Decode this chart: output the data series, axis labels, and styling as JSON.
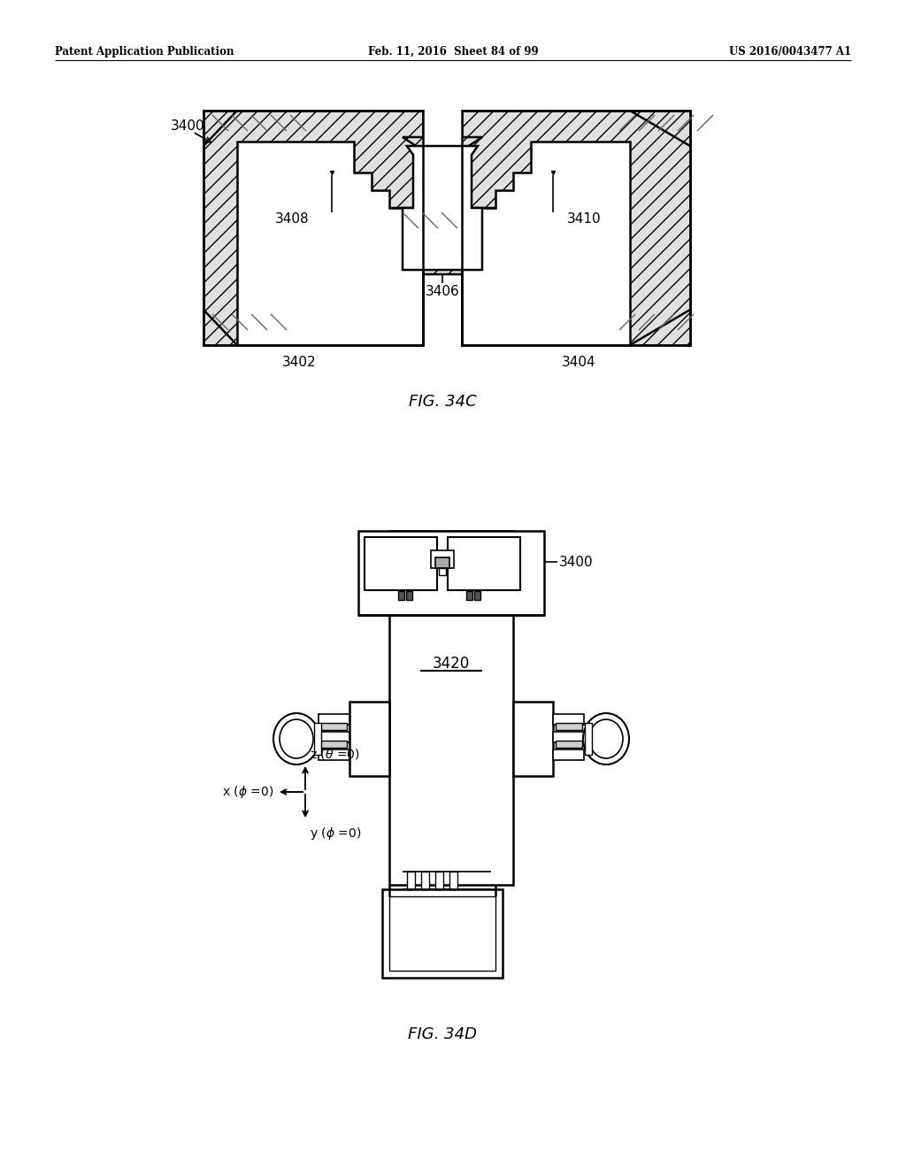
{
  "header_left": "Patent Application Publication",
  "header_mid": "Feb. 11, 2016  Sheet 84 of 99",
  "header_right": "US 2016/0043477 A1",
  "fig34c_label": "FIG. 34C",
  "fig34d_label": "FIG. 34D",
  "label_3400_top": "3400",
  "label_3402": "3402",
  "label_3404": "3404",
  "label_3406": "3406",
  "label_3408": "3408",
  "label_3410": "3410",
  "label_3420": "3420",
  "label_3400_bot": "3400",
  "bg_color": "#ffffff",
  "line_color": "#000000"
}
